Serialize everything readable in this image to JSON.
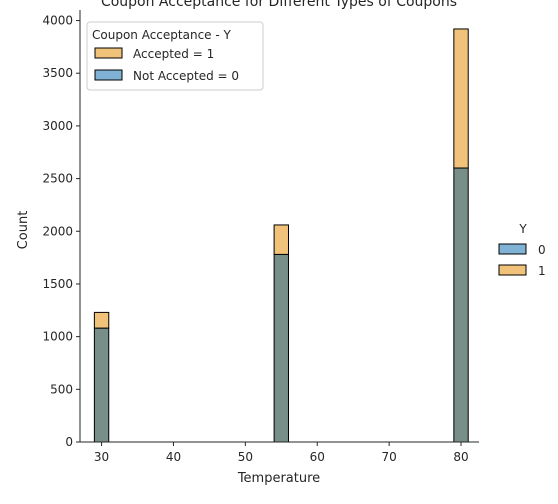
{
  "chart_data": {
    "type": "bar",
    "title": "Coupon Acceptance for Different Types of Coupons",
    "xlabel": "Temperature",
    "ylabel": "Count",
    "xlim": [
      27,
      82.5
    ],
    "ylim": [
      0,
      4100
    ],
    "xticks": [
      30,
      40,
      50,
      60,
      70,
      80
    ],
    "yticks": [
      0,
      500,
      1000,
      1500,
      2000,
      2500,
      3000,
      3500,
      4000
    ],
    "grid": false,
    "bar_width": 2,
    "stacked": true,
    "categories": [
      30,
      55,
      80
    ],
    "series": [
      {
        "name": "0",
        "values": [
          1080,
          1780,
          2600
        ],
        "color": "#4c72b0"
      },
      {
        "name": "1",
        "values": [
          150,
          280,
          1320
        ],
        "color": "#dd8452"
      }
    ],
    "inner_legend": {
      "title": "Coupon Acceptance - Y",
      "placement": "upper-left",
      "entries": [
        {
          "label": "Accepted = 1",
          "color": "#f0c27a"
        },
        {
          "label": "Not Accepted = 0",
          "color": "#7fb2d5"
        }
      ]
    },
    "outer_legend": {
      "title": "Y",
      "placement": "right",
      "entries": [
        {
          "label": "0",
          "color": "#7fb2d5"
        },
        {
          "label": "1",
          "color": "#f0c27a"
        }
      ]
    },
    "colors": {
      "overlap_fill": "#778f88",
      "accepted_fill": "#f0c27a",
      "not_accepted_fill": "#7fb2d5",
      "edge": "#000000"
    }
  }
}
